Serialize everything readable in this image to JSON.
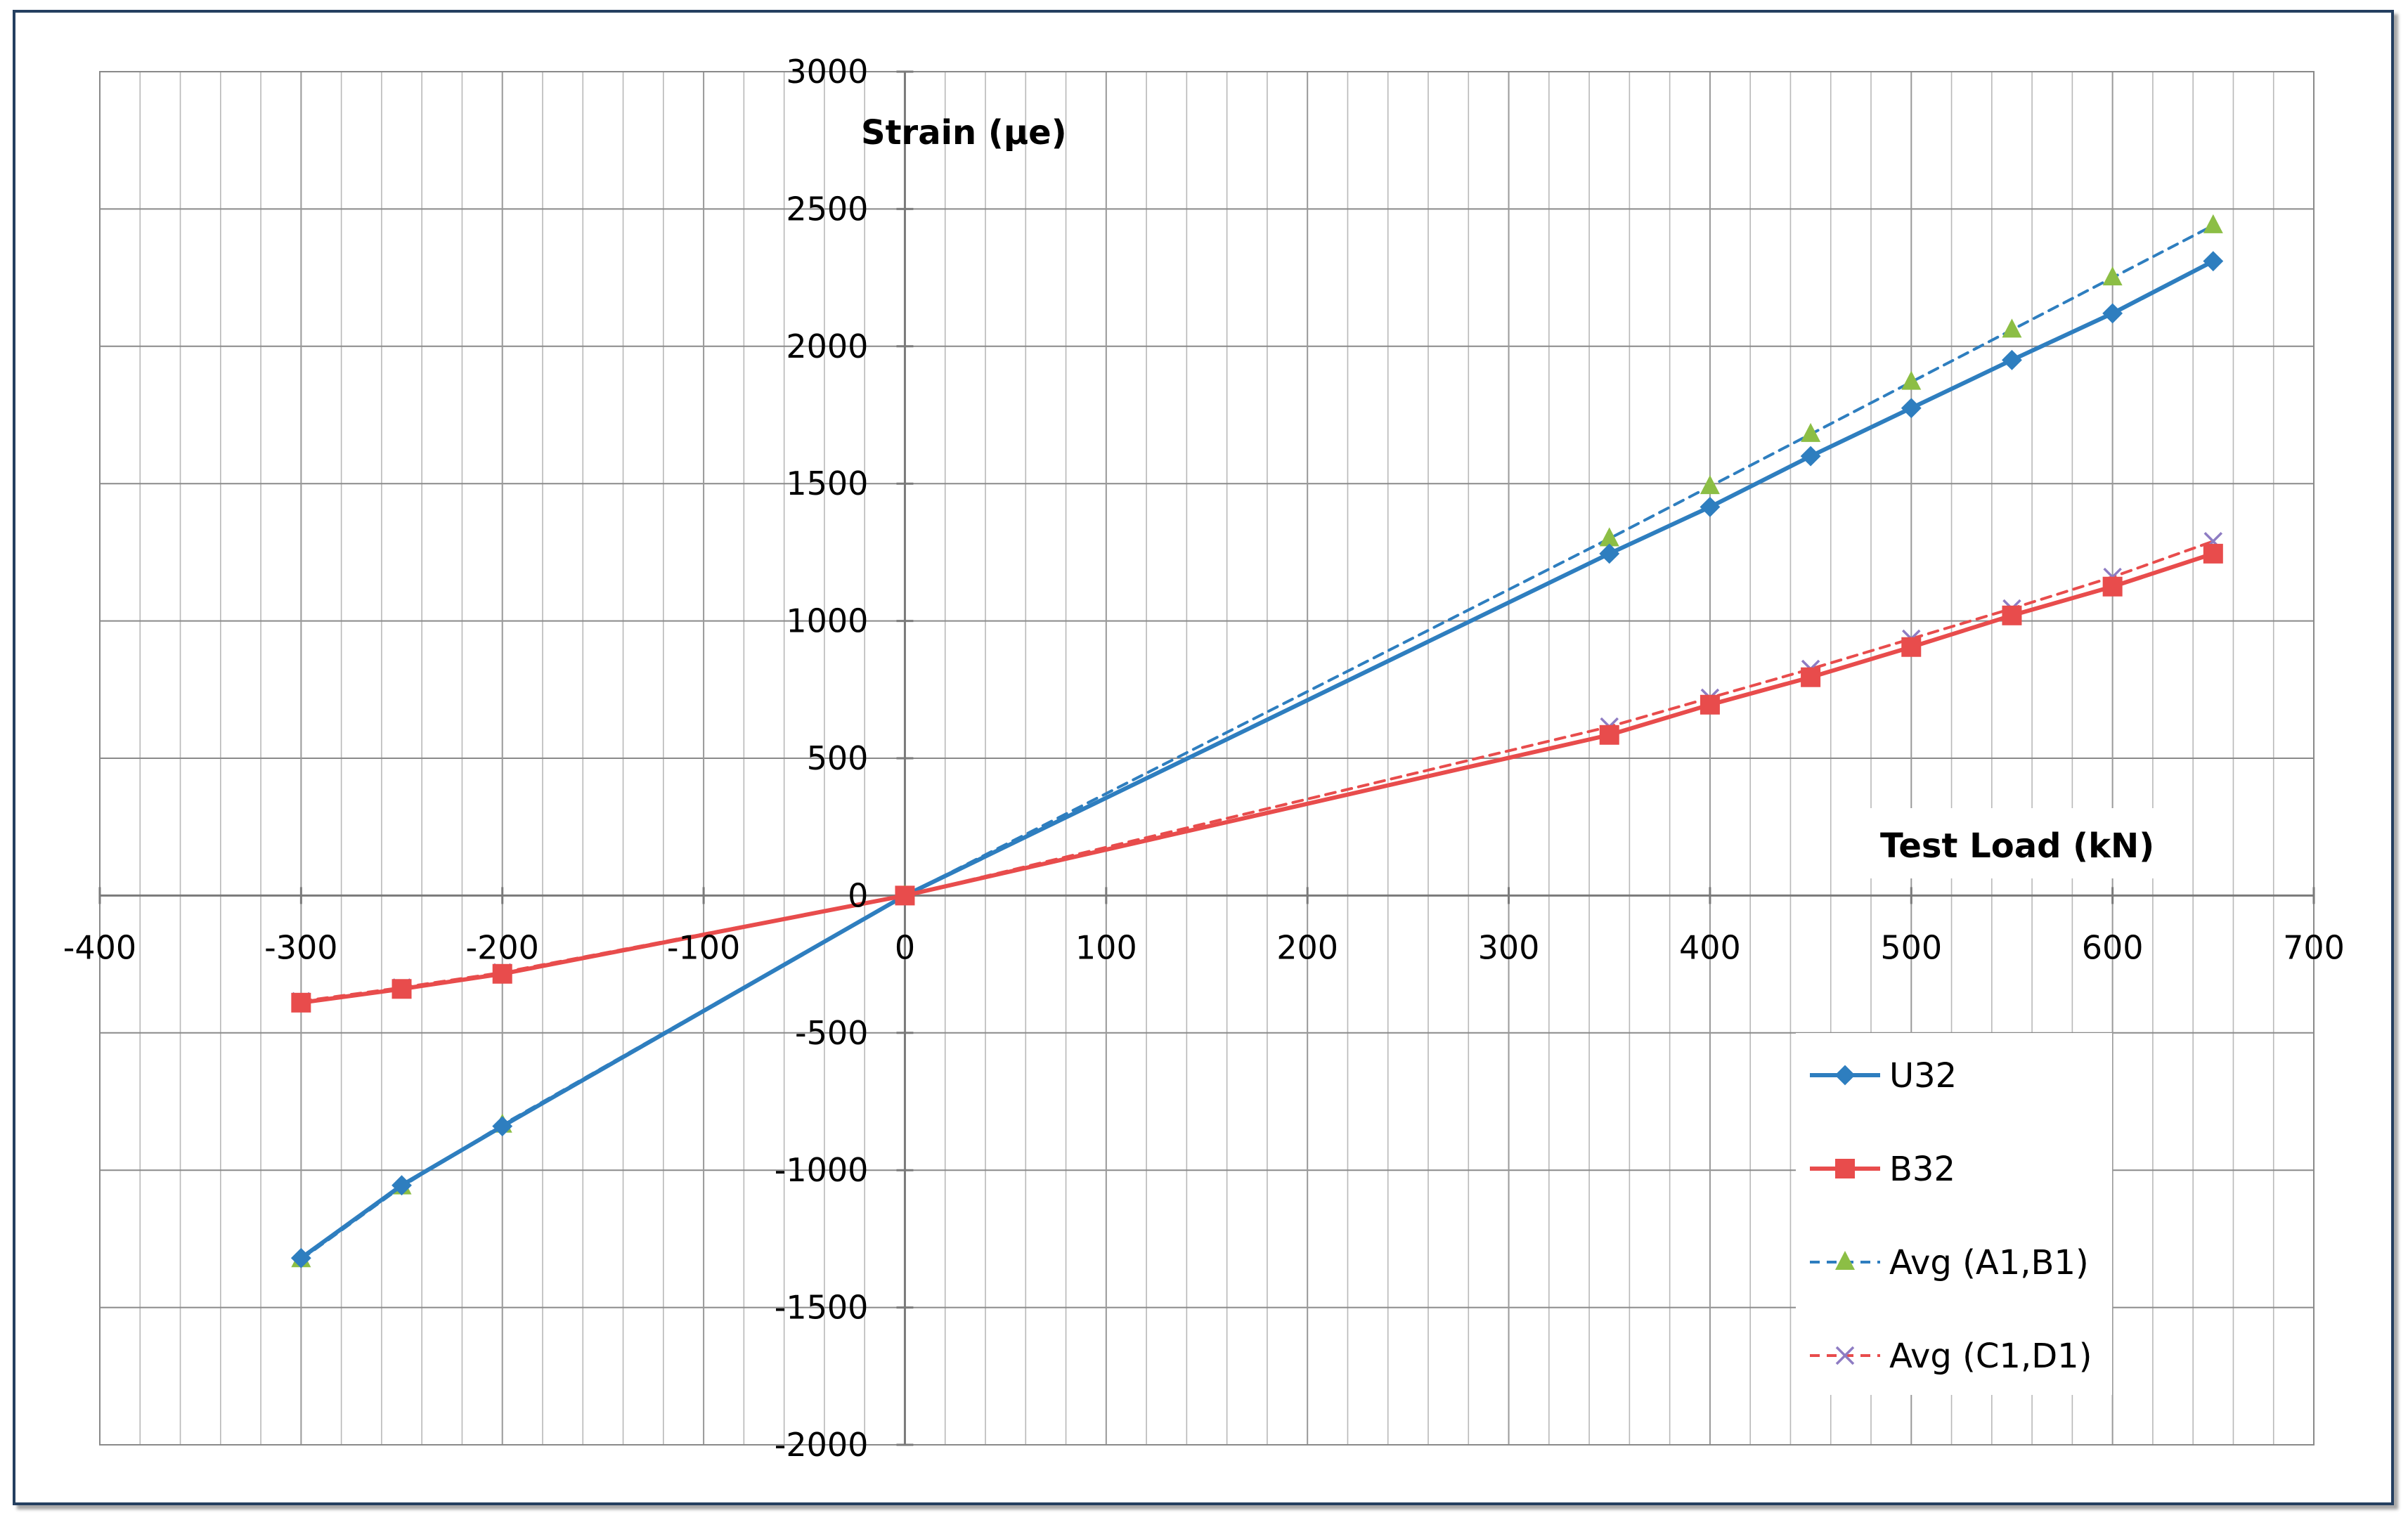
{
  "chart_data": {
    "type": "line",
    "xlabel": "Test Load (kN)",
    "ylabel": "Strain (µe)",
    "xlim": [
      -400,
      700
    ],
    "ylim": [
      -2000,
      3000
    ],
    "x_major_ticks": [
      -400,
      -300,
      -200,
      -100,
      0,
      100,
      200,
      300,
      400,
      500,
      600,
      700
    ],
    "y_major_ticks": [
      -2000,
      -1500,
      -1000,
      -500,
      0,
      500,
      1000,
      1500,
      2000,
      2500,
      3000
    ],
    "x_tick_labels": [
      "-400",
      "-300",
      "-200",
      "-100",
      "0",
      "100",
      "200",
      "300",
      "400",
      "500",
      "600",
      "700"
    ],
    "y_tick_labels": [
      "-2000",
      "-1500",
      "-1000",
      "-500",
      "0",
      "500",
      "1000",
      "1500",
      "2000",
      "2500",
      "3000"
    ],
    "x_minor_step": 20,
    "y_minor_step": 500,
    "grid": true,
    "legend_position": "bottom-right",
    "series": [
      {
        "name": "U32",
        "color": "#2e7ebf",
        "line": "solid",
        "marker": "diamond",
        "x": [
          -300,
          -250,
          -200,
          0,
          350,
          400,
          450,
          500,
          550,
          600,
          650
        ],
        "y": [
          -1320,
          -1055,
          -840,
          0,
          1245,
          1415,
          1600,
          1775,
          1950,
          2120,
          2310
        ]
      },
      {
        "name": "B32",
        "color": "#e84c4c",
        "line": "solid",
        "marker": "square",
        "x": [
          -300,
          -250,
          -200,
          0,
          350,
          400,
          450,
          500,
          550,
          600,
          650
        ],
        "y": [
          -390,
          -340,
          -285,
          0,
          585,
          695,
          795,
          905,
          1020,
          1125,
          1245
        ]
      },
      {
        "name": "Avg (A1,B1)",
        "color": "#2e7ebf",
        "marker_color": "#8cbe45",
        "line": "dashed",
        "marker": "triangle",
        "x": [
          -300,
          -250,
          -200,
          0,
          350,
          400,
          450,
          500,
          550,
          600,
          650
        ],
        "y": [
          -1325,
          -1060,
          -835,
          0,
          1300,
          1490,
          1680,
          1870,
          2060,
          2250,
          2440
        ]
      },
      {
        "name": "Avg (C1,D1)",
        "color": "#e84c4c",
        "marker_color": "#8e7cc3",
        "line": "dashed",
        "marker": "x",
        "x": [
          -300,
          -250,
          -200,
          0,
          350,
          400,
          450,
          500,
          550,
          600,
          650
        ],
        "y": [
          -385,
          -335,
          -280,
          0,
          615,
          720,
          825,
          935,
          1045,
          1160,
          1290
        ]
      }
    ]
  }
}
